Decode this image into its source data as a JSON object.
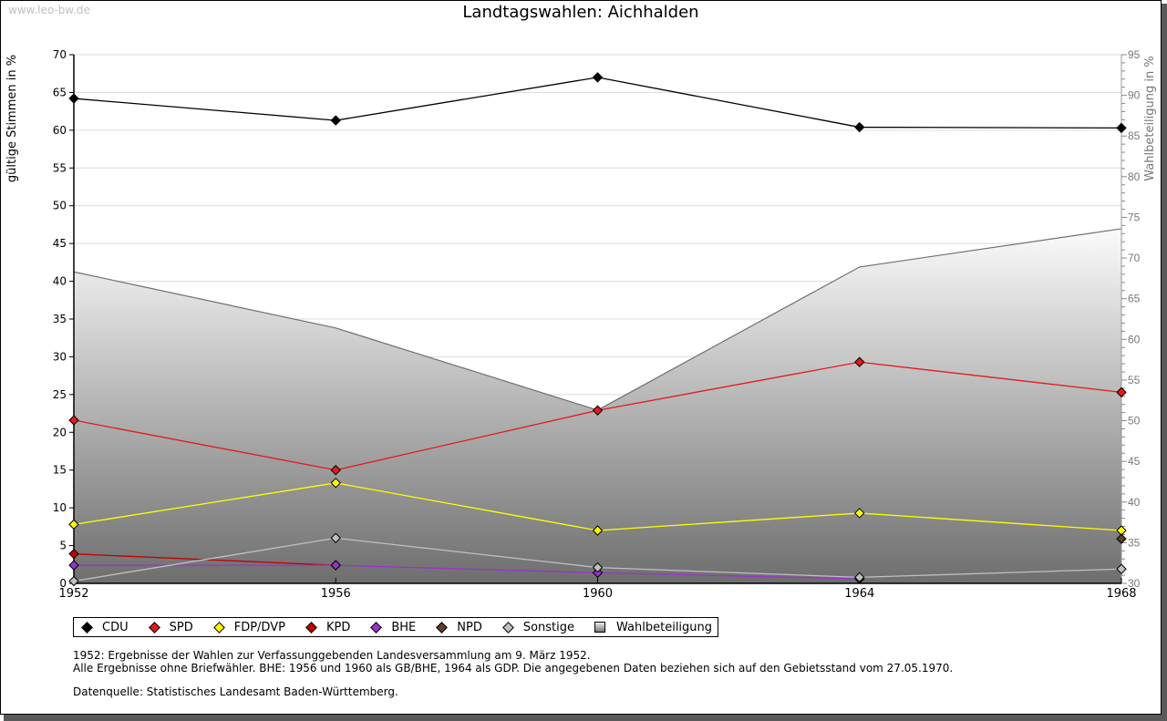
{
  "watermark": "www.leo-bw.de",
  "chart_data": {
    "type": "line",
    "title": "Landtagswahlen: Aichhalden",
    "ylabel": "gültige Stimmen in %",
    "y2label": "Wahlbeteiligung in %",
    "xlabel": "",
    "x": [
      1952,
      1956,
      1960,
      1964,
      1968
    ],
    "ylim": [
      0,
      70
    ],
    "y2lim": [
      30,
      95
    ],
    "yticks": [
      0,
      5,
      10,
      15,
      20,
      25,
      30,
      35,
      40,
      45,
      50,
      55,
      60,
      65,
      70
    ],
    "y2ticks": [
      30,
      35,
      40,
      45,
      50,
      55,
      60,
      65,
      70,
      75,
      80,
      85,
      90,
      95
    ],
    "grid": true,
    "legend_position": "bottom-left",
    "series": [
      {
        "name": "CDU",
        "color": "#000000",
        "values": [
          64.2,
          61.3,
          67.0,
          60.4,
          60.3
        ]
      },
      {
        "name": "SPD",
        "color": "#e31a1c",
        "values": [
          21.6,
          15.0,
          22.9,
          29.3,
          25.3
        ]
      },
      {
        "name": "FDP/DVP",
        "color": "#ffff00",
        "values": [
          7.8,
          13.3,
          7.0,
          9.3,
          7.0
        ]
      },
      {
        "name": "KPD",
        "color": "#c00000",
        "values": [
          3.9,
          2.4,
          null,
          null,
          null
        ]
      },
      {
        "name": "BHE",
        "color": "#9933cc",
        "values": [
          2.4,
          2.4,
          1.4,
          0.6,
          null
        ]
      },
      {
        "name": "NPD",
        "color": "#5c3d2e",
        "values": [
          null,
          null,
          null,
          null,
          5.9
        ]
      },
      {
        "name": "Sonstige",
        "color": "#c0c0c0",
        "values": [
          0.3,
          6.0,
          2.1,
          0.8,
          1.9
        ]
      }
    ],
    "area_series": {
      "name": "Wahlbeteiligung",
      "axis": "right",
      "values": [
        68.3,
        61.4,
        51.3,
        68.9,
        73.6
      ]
    }
  },
  "legend": [
    {
      "label": "CDU",
      "color": "#000000",
      "shape": "diamond"
    },
    {
      "label": "SPD",
      "color": "#e31a1c",
      "shape": "diamond"
    },
    {
      "label": "FDP/DVP",
      "color": "#ffff00",
      "shape": "diamond"
    },
    {
      "label": "KPD",
      "color": "#c00000",
      "shape": "diamond"
    },
    {
      "label": "BHE",
      "color": "#9933cc",
      "shape": "diamond"
    },
    {
      "label": "NPD",
      "color": "#5c3d2e",
      "shape": "diamond"
    },
    {
      "label": "Sonstige",
      "color": "#c0c0c0",
      "shape": "diamond"
    },
    {
      "label": "Wahlbeteiligung",
      "color": "#999999",
      "shape": "square"
    }
  ],
  "notes": [
    "1952: Ergebnisse der Wahlen zur Verfassunggebenden Landesversammlung am 9. März 1952.",
    "Alle Ergebnisse ohne Briefwähler. BHE: 1956 und 1960 als GB/BHE, 1964 als GDP. Die angegebenen Daten beziehen sich auf den Gebietsstand vom 27.05.1970."
  ],
  "source": "Datenquelle: Statistisches Landesamt Baden-Württemberg."
}
